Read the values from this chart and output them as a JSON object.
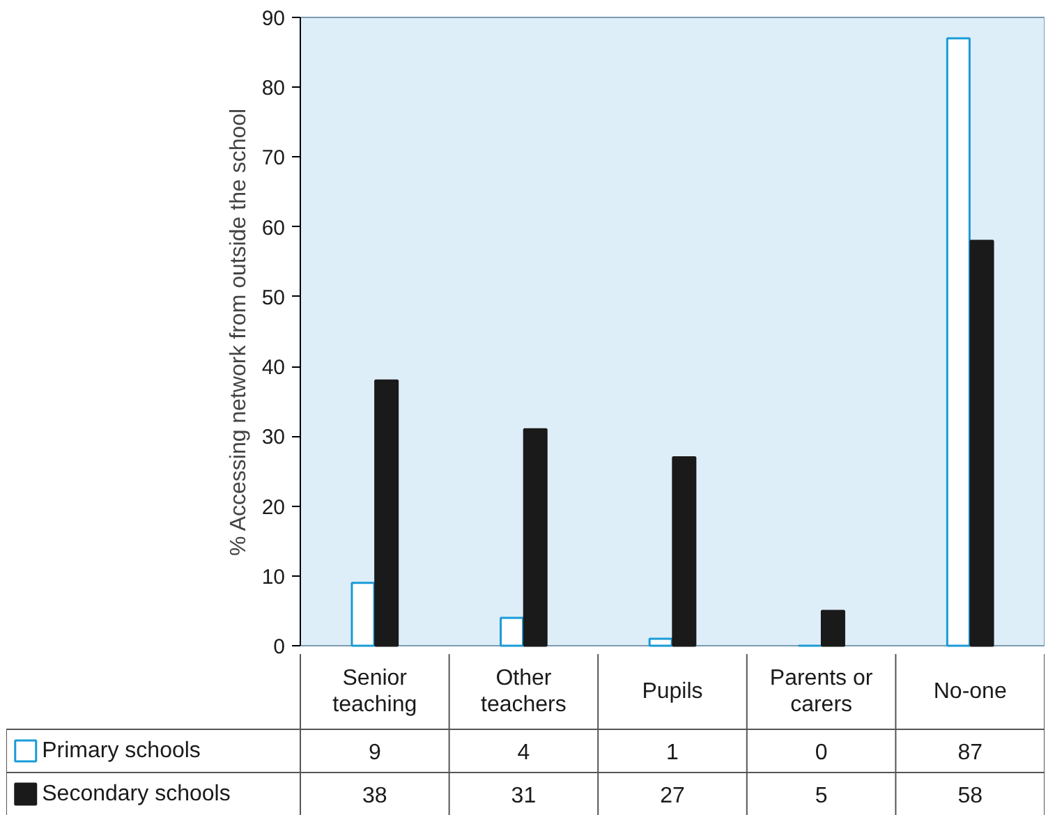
{
  "chart_data": {
    "type": "bar",
    "ylabel": "% Accessing network from outside the school",
    "categories": [
      "Senior teaching",
      "Other teachers",
      "Pupils",
      "Parents or carers",
      "No-one"
    ],
    "series": [
      {
        "name": "Primary schools",
        "color": "#1a9bd7",
        "values": [
          9,
          4,
          1,
          0,
          87
        ]
      },
      {
        "name": "Secondary schools",
        "color": "#1a1a1a",
        "values": [
          38,
          31,
          27,
          5,
          58
        ]
      }
    ],
    "ylim": [
      0,
      90
    ],
    "yticks": [
      0,
      10,
      20,
      30,
      40,
      50,
      60,
      70,
      80,
      90
    ],
    "grid": false,
    "legend": "bottom",
    "data_labels": true
  }
}
